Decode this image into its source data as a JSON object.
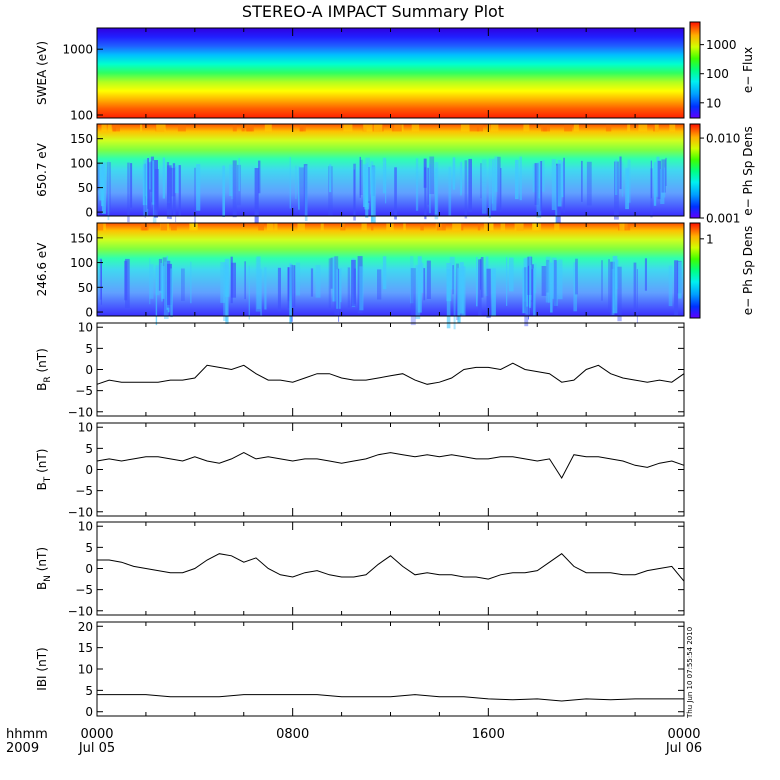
{
  "chart_data": {
    "type": "line",
    "title": "STEREO-A IMPACT Summary Plot",
    "timestamp": "Thu Jun 10 07:55:54 2010",
    "x_axis": {
      "label_line1": "hhmm",
      "label_line2": "2009",
      "range_hours": [
        0,
        24
      ],
      "ticks": [
        {
          "hour": 0,
          "label": "0000",
          "sub": "Jul 05"
        },
        {
          "hour": 8,
          "label": "0800",
          "sub": ""
        },
        {
          "hour": 16,
          "label": "1600",
          "sub": ""
        },
        {
          "hour": 24,
          "label": "0000",
          "sub": "Jul 06"
        }
      ]
    },
    "spectrograms": [
      {
        "ylabel": "SWEA (eV)",
        "yscale": "log",
        "ylim": [
          90,
          2100
        ],
        "yticks": [
          {
            "v": 100,
            "label": "100"
          },
          {
            "v": 1000,
            "label": "1000"
          }
        ],
        "colorbar_label": "e− Flux",
        "colorbar_scale": "log",
        "colorbar_range": [
          3,
          6000
        ],
        "colorbar_ticks": [
          {
            "v": 10,
            "label": "10"
          },
          {
            "v": 100,
            "label": "100"
          },
          {
            "v": 1000,
            "label": "1000"
          }
        ]
      },
      {
        "ylabel": "650.7 eV",
        "yscale": "linear",
        "ylim": [
          -8,
          180
        ],
        "yticks": [
          {
            "v": 0,
            "label": "0"
          },
          {
            "v": 50,
            "label": "50"
          },
          {
            "v": 100,
            "label": "100"
          },
          {
            "v": 150,
            "label": "150"
          }
        ],
        "colorbar_label": "e− Ph Sp Dens",
        "colorbar_scale": "log",
        "colorbar_range": [
          0.001,
          0.015
        ],
        "colorbar_ticks": [
          {
            "v": 0.001,
            "label": "0.001"
          },
          {
            "v": 0.01,
            "label": "0.010"
          }
        ]
      },
      {
        "ylabel": "246.6 eV",
        "yscale": "linear",
        "ylim": [
          -8,
          180
        ],
        "yticks": [
          {
            "v": 0,
            "label": "0"
          },
          {
            "v": 50,
            "label": "50"
          },
          {
            "v": 100,
            "label": "100"
          },
          {
            "v": 150,
            "label": "150"
          }
        ],
        "colorbar_label": "e− Ph Sp Dens",
        "colorbar_scale": "linear",
        "colorbar_range": [
          0,
          1.2
        ],
        "colorbar_ticks": [
          {
            "v": 1,
            "label": "1"
          }
        ]
      }
    ],
    "line_panels": [
      {
        "ylabel_main": "B",
        "ylabel_sub": "R",
        "ylabel_unit": "(nT)",
        "ylim": [
          -11,
          11
        ],
        "yticks": [
          {
            "v": 10,
            "label": "10"
          },
          {
            "v": 5,
            "label": "5"
          },
          {
            "v": 0,
            "label": "0"
          },
          {
            "v": -5,
            "label": "−5"
          },
          {
            "v": -10,
            "label": "−10"
          }
        ],
        "x": [
          0,
          0.5,
          1,
          1.5,
          2,
          2.5,
          3,
          3.5,
          4,
          4.5,
          5,
          5.5,
          6,
          6.5,
          7,
          7.5,
          8,
          8.5,
          9,
          9.5,
          10,
          10.5,
          11,
          11.5,
          12,
          12.5,
          13,
          13.5,
          14,
          14.5,
          15,
          15.5,
          16,
          16.5,
          17,
          17.5,
          18,
          18.5,
          19,
          19.5,
          20,
          20.5,
          21,
          21.5,
          22,
          22.5,
          23,
          23.5,
          24
        ],
        "values": [
          -3.5,
          -2.5,
          -3,
          -3,
          -3,
          -3,
          -2.5,
          -2.5,
          -2,
          1,
          0.5,
          0,
          1,
          -1,
          -2.5,
          -2.5,
          -3,
          -2,
          -1,
          -1,
          -2,
          -2.5,
          -2.5,
          -2,
          -1.5,
          -1,
          -2.5,
          -3.5,
          -3,
          -2,
          0,
          0.5,
          0.5,
          0,
          1.5,
          0,
          -0.5,
          -1,
          -3,
          -2.5,
          0,
          1,
          -1,
          -2,
          -2.5,
          -3,
          -2.5,
          -3,
          -1
        ]
      },
      {
        "ylabel_main": "B",
        "ylabel_sub": "T",
        "ylabel_unit": "(nT)",
        "ylim": [
          -11,
          11
        ],
        "yticks": [
          {
            "v": 10,
            "label": "10"
          },
          {
            "v": 5,
            "label": "5"
          },
          {
            "v": 0,
            "label": "0"
          },
          {
            "v": -5,
            "label": "−5"
          },
          {
            "v": -10,
            "label": "−10"
          }
        ],
        "x": [
          0,
          0.5,
          1,
          1.5,
          2,
          2.5,
          3,
          3.5,
          4,
          4.5,
          5,
          5.5,
          6,
          6.5,
          7,
          7.5,
          8,
          8.5,
          9,
          9.5,
          10,
          10.5,
          11,
          11.5,
          12,
          12.5,
          13,
          13.5,
          14,
          14.5,
          15,
          15.5,
          16,
          16.5,
          17,
          17.5,
          18,
          18.5,
          19,
          19.5,
          20,
          20.5,
          21,
          21.5,
          22,
          22.5,
          23,
          23.5,
          24
        ],
        "values": [
          2,
          2.5,
          2,
          2.5,
          3,
          3,
          2.5,
          2,
          3,
          2,
          1.5,
          2.5,
          4,
          2.5,
          3,
          2.5,
          2,
          2.5,
          2.5,
          2,
          1.5,
          2,
          2.5,
          3.5,
          4,
          3.5,
          3,
          3.5,
          3,
          3.5,
          3,
          2.5,
          2.5,
          3,
          3,
          2.5,
          2,
          2.5,
          -2,
          3.5,
          3,
          3,
          2.5,
          2,
          1,
          0.5,
          1.5,
          2,
          1
        ]
      },
      {
        "ylabel_main": "B",
        "ylabel_sub": "N",
        "ylabel_unit": "(nT)",
        "ylim": [
          -11,
          11
        ],
        "yticks": [
          {
            "v": 10,
            "label": "10"
          },
          {
            "v": 5,
            "label": "5"
          },
          {
            "v": 0,
            "label": "0"
          },
          {
            "v": -5,
            "label": "−5"
          },
          {
            "v": -10,
            "label": "−10"
          }
        ],
        "x": [
          0,
          0.5,
          1,
          1.5,
          2,
          2.5,
          3,
          3.5,
          4,
          4.5,
          5,
          5.5,
          6,
          6.5,
          7,
          7.5,
          8,
          8.5,
          9,
          9.5,
          10,
          10.5,
          11,
          11.5,
          12,
          12.5,
          13,
          13.5,
          14,
          14.5,
          15,
          15.5,
          16,
          16.5,
          17,
          17.5,
          18,
          18.5,
          19,
          19.5,
          20,
          20.5,
          21,
          21.5,
          22,
          22.5,
          23,
          23.5,
          24
        ],
        "values": [
          2,
          2,
          1.5,
          0.5,
          0,
          -0.5,
          -1,
          -1,
          0,
          2,
          3.5,
          3,
          1.5,
          2.5,
          0,
          -1.5,
          -2,
          -1,
          -0.5,
          -1.5,
          -2,
          -2,
          -1.5,
          1,
          3,
          0.5,
          -1.5,
          -1,
          -1.5,
          -1.5,
          -2,
          -2,
          -2.5,
          -1.5,
          -1,
          -1,
          -0.5,
          1.5,
          3.5,
          0.5,
          -1,
          -1,
          -1,
          -1.5,
          -1.5,
          -0.5,
          0,
          0.5,
          -3
        ]
      },
      {
        "ylabel_main": "IBI",
        "ylabel_sub": "",
        "ylabel_unit": "(nT)",
        "ylim": [
          -1,
          21
        ],
        "yticks": [
          {
            "v": 0,
            "label": "0"
          },
          {
            "v": 5,
            "label": "5"
          },
          {
            "v": 10,
            "label": "10"
          },
          {
            "v": 15,
            "label": "15"
          },
          {
            "v": 20,
            "label": "20"
          }
        ],
        "x": [
          0,
          1,
          2,
          3,
          4,
          5,
          6,
          7,
          8,
          9,
          10,
          11,
          12,
          13,
          14,
          15,
          16,
          17,
          18,
          19,
          20,
          21,
          22,
          23,
          24
        ],
        "values": [
          4,
          4,
          4,
          3.5,
          3.5,
          3.5,
          4,
          4,
          4,
          4,
          3.5,
          3.5,
          3.5,
          4,
          3.5,
          3.5,
          3,
          2.8,
          3,
          2.5,
          3,
          2.8,
          3,
          3,
          3
        ]
      }
    ]
  }
}
